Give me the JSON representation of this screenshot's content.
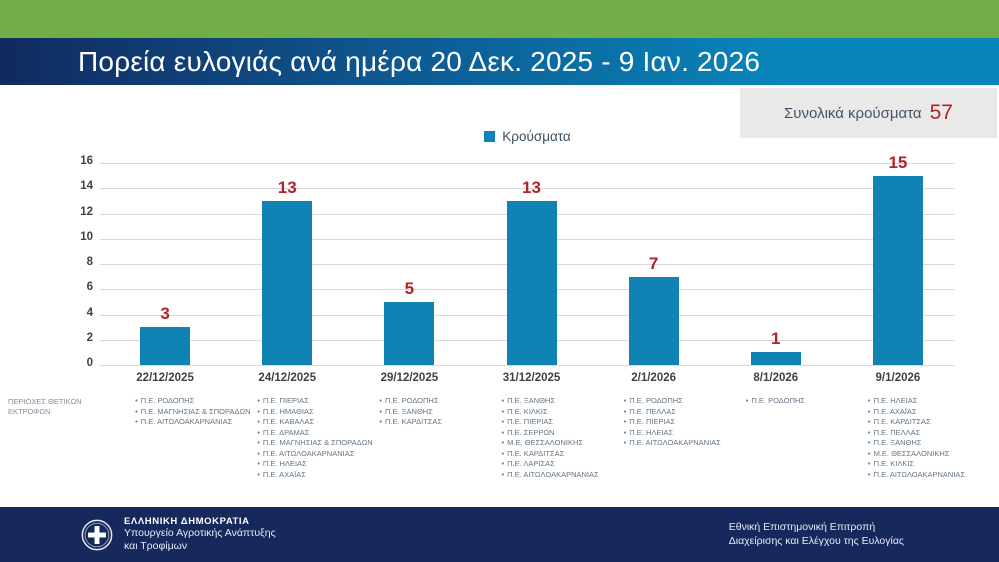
{
  "header": {
    "title": "Πορεία ευλογιάς ανά ημέρα 20 Δεκ. 2025 - 9 Ιαν. 2026"
  },
  "total": {
    "label": "Συνολικά κρούσματα",
    "value": "57"
  },
  "legend": {
    "label": "Κρούσματα"
  },
  "row_label": "ΠΕΡΙΟΧΕΣ ΘΕΤΙΚΩΝ ΕΚΤΡΟΦΩΝ",
  "chart_data": {
    "type": "bar",
    "title": "Πορεία ευλογιάς ανά ημέρα 20 Δεκ. 2025 - 9 Ιαν. 2026",
    "legend_entries": [
      "Κρούσματα"
    ],
    "legend_position": "top-center",
    "categories": [
      "22/12/2025",
      "24/12/2025",
      "29/12/2025",
      "31/12/2025",
      "2/1/2026",
      "8/1/2026",
      "9/1/2026"
    ],
    "values": [
      3,
      13,
      5,
      13,
      7,
      1,
      15
    ],
    "total": 57,
    "ylim": [
      0,
      16
    ],
    "ytick_step": 2,
    "grid": true,
    "bar_color": "#1182b4",
    "value_label_color": "#b3232a",
    "regions_per_day": [
      [
        "Π.Ε. ΡΟΔΟΠΗΣ",
        "Π.Ε. ΜΑΓΝΗΣΙΑΣ & ΣΠΟΡΑΔΩΝ",
        "Π.Ε. ΑΙΤΩΛΟΑΚΑΡΝΑΝΙΑΣ"
      ],
      [
        "Π.Ε. ΠΙΕΡΙΑΣ",
        "Π.Ε. ΗΜΑΘΙΑΣ",
        "Π.Ε. ΚΑΒΑΛΑΣ",
        "Π.Ε. ΔΡΑΜΑΣ",
        "Π.Ε. ΜΑΓΝΗΣΙΑΣ & ΣΠΟΡΑΔΩΝ",
        "Π.Ε. ΑΙΤΩΛΟΑΚΑΡΝΑΝΙΑΣ",
        "Π.Ε. ΗΛΕΙΑΣ",
        "Π.Ε. ΑΧΑΪΑΣ"
      ],
      [
        "Π.Ε. ΡΟΔΟΠΗΣ",
        "Π.Ε. ΞΑΝΘΗΣ",
        "Π.Ε. ΚΑΡΔΙΤΣΑΣ"
      ],
      [
        "Π.Ε. ΞΑΝΘΗΣ",
        "Π.Ε. ΚΙΛΚΙΣ",
        "Π.Ε. ΠΙΕΡΙΑΣ",
        "Π.Ε. ΣΕΡΡΩΝ",
        "Μ.Ε. ΘΕΣΣΑΛΟΝΙΚΗΣ",
        "Π.Ε. ΚΑΡΔΙΤΣΑΣ",
        "Π.Ε. ΛΑΡΙΣΑΣ",
        "Π.Ε. ΑΙΤΩΛΟΑΚΑΡΝΑΝΙΑΣ"
      ],
      [
        "Π.Ε. ΡΟΔΟΠΗΣ",
        "Π.Ε. ΠΕΛΛΑΣ",
        "Π.Ε. ΠΙΕΡΙΑΣ",
        "Π.Ε. ΗΛΕΙΑΣ",
        "Π.Ε. ΑΙΤΩΛΟΑΚΑΡΝΑΝΙΑΣ"
      ],
      [
        "Π.Ε. ΡΟΔΟΠΗΣ"
      ],
      [
        "Π.Ε. ΗΛΕΙΑΣ",
        "Π.Ε. ΑΧΑΪΑΣ",
        "Π.Ε. ΚΑΡΔΙΤΣΑΣ",
        "Π.Ε. ΠΕΛΛΑΣ",
        "Π.Ε. ΞΑΝΘΗΣ",
        "Μ.Ε. ΘΕΣΣΑΛΟΝΙΚΗΣ",
        "Π.Ε. ΚΙΛΚΙΣ",
        "Π.Ε. ΑΙΤΩΛΟΑΚΑΡΝΑΝΙΑΣ"
      ]
    ]
  },
  "footer": {
    "org_line1": "ΕΛΛΗΝΙΚΗ ΔΗΜΟΚΡΑΤΙΑ",
    "org_line2": "Υπουργείο Αγροτικής Ανάπτυξης",
    "org_line3": "και Τροφίμων",
    "right_line1": "Εθνική Επιστημονική Επιτροπή",
    "right_line2": "Διαχείρισης και Ελέγχου της Ευλογίας"
  },
  "colors": {
    "top_bar_green": "#71ae47",
    "header_gradient_start": "#112a5f",
    "header_gradient_end": "#0885ba",
    "bar_blue": "#1182b4",
    "accent_red": "#b3232a",
    "footer_navy": "#17295c",
    "total_box_gray": "#e9e9e9",
    "gridline_gray": "#d9d9d9"
  }
}
